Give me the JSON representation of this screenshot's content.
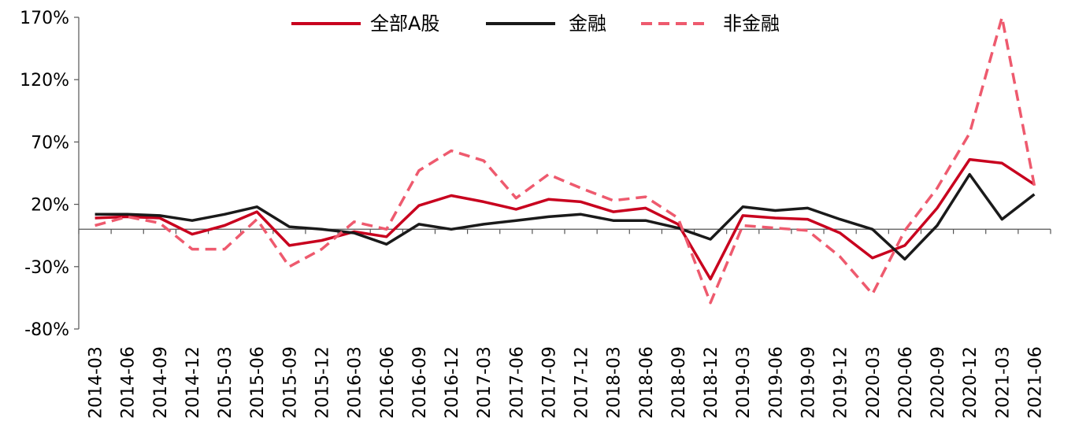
{
  "chart_data": {
    "type": "line",
    "title": "",
    "xlabel": "",
    "ylabel": "",
    "ylim": [
      -80,
      170
    ],
    "yticks": [
      -80,
      -30,
      20,
      70,
      120,
      170
    ],
    "ytick_labels": [
      "-80%",
      "-30%",
      "20%",
      "70%",
      "120%",
      "170%"
    ],
    "categories": [
      "2014-03",
      "2014-06",
      "2014-09",
      "2014-12",
      "2015-03",
      "2015-06",
      "2015-09",
      "2015-12",
      "2016-03",
      "2016-06",
      "2016-09",
      "2016-12",
      "2017-03",
      "2017-06",
      "2017-09",
      "2017-12",
      "2018-03",
      "2018-06",
      "2018-09",
      "2018-12",
      "2019-03",
      "2019-06",
      "2019-09",
      "2019-12",
      "2020-03",
      "2020-06",
      "2020-09",
      "2020-12",
      "2021-03",
      "2021-06"
    ],
    "series": [
      {
        "name": "全部A股",
        "color": "#c8001e",
        "style": "solid",
        "values": [
          9,
          10,
          9,
          -4,
          3,
          14,
          -13,
          -9,
          -2,
          -6,
          19,
          27,
          22,
          16,
          24,
          22,
          14,
          17,
          4,
          -40,
          11,
          9,
          8,
          -3,
          -23,
          -13,
          17,
          56,
          53,
          36
        ]
      },
      {
        "name": "金融",
        "color": "#1a1a1a",
        "style": "solid",
        "values": [
          12,
          12,
          11,
          7,
          12,
          18,
          2,
          0,
          -3,
          -12,
          4,
          0,
          4,
          7,
          10,
          12,
          7,
          7,
          1,
          -8,
          18,
          15,
          17,
          8,
          0,
          -24,
          3,
          44,
          8,
          28
        ]
      },
      {
        "name": "非金融",
        "color": "#ee5a6e",
        "style": "dashed",
        "values": [
          3,
          10,
          5,
          -16,
          -16,
          8,
          -30,
          -16,
          6,
          0,
          47,
          63,
          55,
          25,
          44,
          33,
          23,
          26,
          9,
          -59,
          3,
          1,
          -1,
          -22,
          -52,
          -1,
          33,
          77,
          170,
          35
        ]
      }
    ],
    "legend_position": "top"
  }
}
